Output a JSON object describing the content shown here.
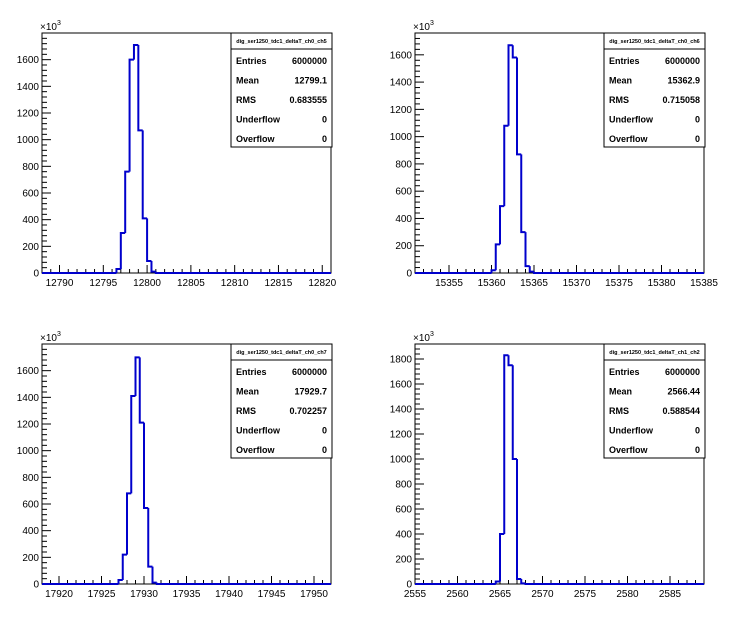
{
  "chart_data": [
    {
      "type": "bar",
      "histogram": "step",
      "title": "dig_ser1250_tdc1_deltaT_ch0_ch5",
      "xlim": [
        12788,
        12821
      ],
      "ylim": [
        0,
        1800
      ],
      "y_multiplier": "×10",
      "y_multiplier_exp": "3",
      "xticks": [
        "12790",
        "12795",
        "12800",
        "12805",
        "12810",
        "12815",
        "12820"
      ],
      "yticks": [
        "0",
        "200",
        "400",
        "600",
        "800",
        "1000",
        "1200",
        "1400",
        "1600"
      ],
      "bin_edges": [
        12796.5,
        12797,
        12797.5,
        12798,
        12798.5,
        12799,
        12799.5,
        12800,
        12800.5,
        12801
      ],
      "values": [
        30,
        300,
        760,
        1600,
        1710,
        1070,
        410,
        90,
        10
      ],
      "stats": [
        {
          "label": "Entries",
          "value": "6000000"
        },
        {
          "label": "Mean",
          "value": "12799.1"
        },
        {
          "label": "RMS",
          "value": "0.683555"
        },
        {
          "label": "Underflow",
          "value": "0"
        },
        {
          "label": "Overflow",
          "value": "0"
        }
      ]
    },
    {
      "type": "bar",
      "histogram": "step",
      "title": "dig_ser1250_tdc1_deltaT_ch0_ch6",
      "xlim": [
        15351,
        15385
      ],
      "ylim": [
        0,
        1760
      ],
      "y_multiplier": "×10",
      "y_multiplier_exp": "3",
      "xticks": [
        "15355",
        "15360",
        "15365",
        "15370",
        "15375",
        "15380",
        "15385"
      ],
      "yticks": [
        "0",
        "200",
        "400",
        "600",
        "800",
        "1000",
        "1200",
        "1400",
        "1600"
      ],
      "bin_edges": [
        15360,
        15360.5,
        15361,
        15361.5,
        15362,
        15362.5,
        15363,
        15363.5,
        15364,
        15364.5,
        15365
      ],
      "values": [
        20,
        210,
        490,
        1080,
        1670,
        1580,
        870,
        300,
        50,
        10
      ],
      "stats": [
        {
          "label": "Entries",
          "value": "6000000"
        },
        {
          "label": "Mean",
          "value": "15362.9"
        },
        {
          "label": "RMS",
          "value": "0.715058"
        },
        {
          "label": "Underflow",
          "value": "0"
        },
        {
          "label": "Overflow",
          "value": "0"
        }
      ]
    },
    {
      "type": "bar",
      "histogram": "step",
      "title": "dig_ser1250_tdc1_deltaT_ch0_ch7",
      "xlim": [
        17918,
        17952
      ],
      "ylim": [
        0,
        1800
      ],
      "y_multiplier": "×10",
      "y_multiplier_exp": "3",
      "xticks": [
        "17920",
        "17925",
        "17930",
        "17935",
        "17940",
        "17945",
        "17950"
      ],
      "yticks": [
        "0",
        "200",
        "400",
        "600",
        "800",
        "1000",
        "1200",
        "1400",
        "1600"
      ],
      "bin_edges": [
        17927,
        17927.5,
        17928,
        17928.5,
        17929,
        17929.5,
        17930,
        17930.5,
        17931,
        17931.5
      ],
      "values": [
        30,
        220,
        680,
        1410,
        1700,
        1210,
        570,
        130,
        10
      ],
      "stats": [
        {
          "label": "Entries",
          "value": "6000000"
        },
        {
          "label": "Mean",
          "value": "17929.7"
        },
        {
          "label": "RMS",
          "value": "0.702257"
        },
        {
          "label": "Underflow",
          "value": "0"
        },
        {
          "label": "Overflow",
          "value": "0"
        }
      ]
    },
    {
      "type": "bar",
      "histogram": "step",
      "title": "dig_ser1250_tdc1_deltaT_ch1_ch2",
      "xlim": [
        2555,
        2589
      ],
      "ylim": [
        0,
        1920
      ],
      "y_multiplier": "×10",
      "y_multiplier_exp": "3",
      "xticks": [
        "2555",
        "2560",
        "2565",
        "2570",
        "2575",
        "2580",
        "2585"
      ],
      "yticks": [
        "0",
        "200",
        "400",
        "600",
        "800",
        "1000",
        "1200",
        "1400",
        "1600",
        "1800"
      ],
      "bin_edges": [
        2564.5,
        2565,
        2565.5,
        2566,
        2566.5,
        2567,
        2567.5,
        2568
      ],
      "values": [
        20,
        400,
        1830,
        1750,
        1000,
        40,
        5
      ],
      "stats": [
        {
          "label": "Entries",
          "value": "6000000"
        },
        {
          "label": "Mean",
          "value": "2566.44"
        },
        {
          "label": "RMS",
          "value": "0.588544"
        },
        {
          "label": "Underflow",
          "value": "0"
        },
        {
          "label": "Overflow",
          "value": "0"
        }
      ]
    }
  ],
  "colors": {
    "histogram_line": "#0000cc",
    "axis": "#000000",
    "background": "#ffffff"
  }
}
